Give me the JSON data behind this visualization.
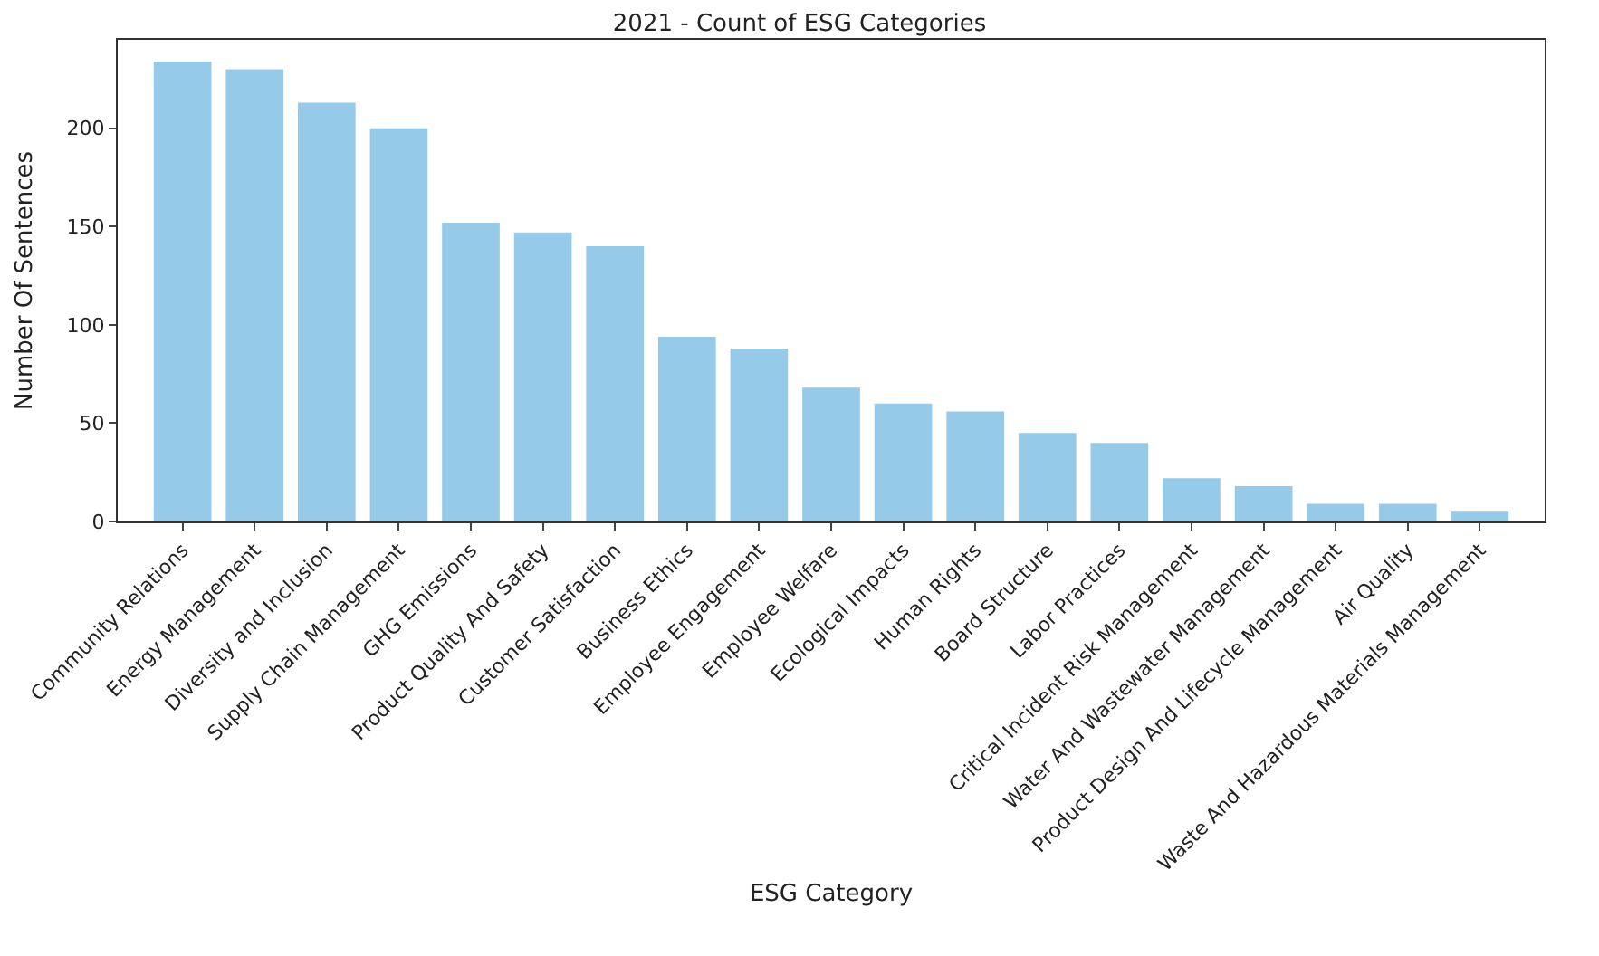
{
  "chart_data": {
    "type": "bar",
    "title": "2021 - Count of ESG Categories",
    "xlabel": "ESG Category",
    "ylabel": "Number Of Sentences",
    "categories": [
      "Community Relations",
      "Energy Management",
      "Diversity and Inclusion",
      "Supply Chain Management",
      "GHG Emissions",
      "Product Quality And Safety",
      "Customer Satisfaction",
      "Business Ethics",
      "Employee Engagement",
      "Employee Welfare",
      "Ecological Impacts",
      "Human Rights",
      "Board Structure",
      "Labor Practices",
      "Critical Incident Risk Management",
      "Water And Wastewater Management",
      "Product Design And Lifecycle Management",
      "Air Quality",
      "Waste And Hazardous Materials Management"
    ],
    "values": [
      234,
      230,
      213,
      200,
      152,
      147,
      140,
      94,
      88,
      68,
      60,
      56,
      45,
      40,
      22,
      18,
      9,
      9,
      5
    ],
    "color": "#95cbe8",
    "ylim": [
      0,
      245
    ],
    "yticks": [
      0,
      50,
      100,
      150,
      200
    ]
  }
}
